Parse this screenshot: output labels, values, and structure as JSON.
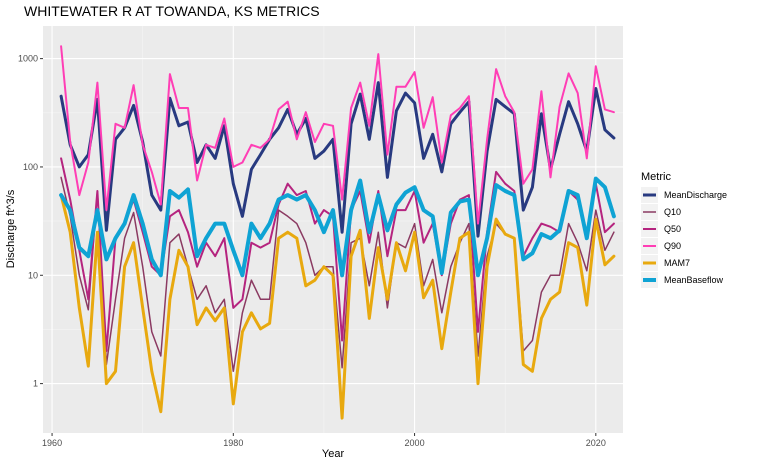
{
  "chart_data": {
    "type": "line",
    "title": "WHITEWATER R AT TOWANDA, KS  METRICS",
    "xlabel": "Year",
    "ylabel": "Discharge ft^3/s",
    "xlim": [
      1959,
      2023
    ],
    "ylim": [
      0.35,
      2000
    ],
    "yscale": "log",
    "grid": true,
    "x_ticks": [
      1960,
      1980,
      2000,
      2020
    ],
    "x_tick_labels": [
      "1960",
      "1980",
      "2000",
      "2020"
    ],
    "y_ticks": [
      1,
      10,
      100,
      1000
    ],
    "y_tick_labels": [
      "1",
      "10",
      "100",
      "1000"
    ],
    "legend": {
      "title": "Metric",
      "placement": "right"
    },
    "x": [
      1961,
      1962,
      1963,
      1964,
      1965,
      1966,
      1967,
      1968,
      1969,
      1970,
      1971,
      1972,
      1973,
      1974,
      1975,
      1976,
      1977,
      1978,
      1979,
      1980,
      1981,
      1982,
      1983,
      1984,
      1985,
      1986,
      1987,
      1988,
      1989,
      1990,
      1991,
      1992,
      1993,
      1994,
      1995,
      1996,
      1997,
      1998,
      1999,
      2000,
      2001,
      2002,
      2003,
      2004,
      2005,
      2006,
      2007,
      2008,
      2009,
      2010,
      2011,
      2012,
      2013,
      2014,
      2015,
      2016,
      2017,
      2018,
      2019,
      2020,
      2021,
      2022
    ],
    "series": [
      {
        "name": "MeanDischarge",
        "color": "#283a80",
        "width": 3,
        "values": [
          450,
          160,
          100,
          130,
          420,
          26,
          180,
          230,
          370,
          170,
          55,
          40,
          430,
          240,
          260,
          110,
          160,
          120,
          240,
          70,
          35,
          95,
          130,
          180,
          230,
          340,
          200,
          280,
          120,
          140,
          180,
          25,
          250,
          470,
          180,
          600,
          80,
          330,
          480,
          390,
          120,
          200,
          90,
          250,
          320,
          400,
          23,
          140,
          420,
          360,
          310,
          40,
          65,
          310,
          95,
          200,
          400,
          250,
          140,
          530,
          220,
          185
        ]
      },
      {
        "name": "Q10",
        "color": "#8b3a62",
        "width": 1.5,
        "values": [
          80,
          35,
          10,
          4.8,
          60,
          1.5,
          6,
          22,
          38,
          12,
          3,
          1.8,
          20,
          24,
          12,
          6,
          8,
          4.5,
          6,
          1.3,
          4.5,
          9,
          6,
          6,
          40,
          35,
          30,
          20,
          10,
          12,
          12,
          1.4,
          20,
          22,
          8,
          25,
          5,
          20,
          18,
          30,
          8,
          14,
          4.5,
          12,
          20,
          30,
          1.8,
          15,
          30,
          24,
          22,
          2,
          2.5,
          7,
          10,
          10,
          30,
          20,
          11,
          40,
          17,
          25
        ]
      },
      {
        "name": "Q50",
        "color": "#b5247f",
        "width": 2,
        "values": [
          120,
          50,
          17,
          6,
          60,
          2,
          22,
          30,
          50,
          25,
          12,
          10,
          35,
          40,
          25,
          12,
          20,
          15,
          22,
          5,
          6,
          20,
          18,
          20,
          45,
          70,
          55,
          60,
          30,
          40,
          35,
          2.5,
          40,
          60,
          20,
          60,
          15,
          40,
          40,
          60,
          20,
          30,
          10,
          30,
          50,
          55,
          3,
          25,
          90,
          70,
          60,
          15,
          22,
          30,
          28,
          25,
          60,
          50,
          22,
          70,
          25,
          30
        ]
      },
      {
        "name": "Q90",
        "color": "#ff3eb5",
        "width": 2,
        "values": [
          1300,
          170,
          55,
          110,
          600,
          40,
          250,
          230,
          570,
          160,
          90,
          45,
          720,
          350,
          350,
          75,
          160,
          150,
          280,
          100,
          110,
          160,
          150,
          180,
          340,
          400,
          180,
          320,
          170,
          250,
          240,
          50,
          350,
          600,
          240,
          1100,
          130,
          550,
          550,
          750,
          230,
          440,
          110,
          300,
          350,
          450,
          30,
          180,
          800,
          450,
          320,
          70,
          95,
          500,
          80,
          360,
          730,
          480,
          120,
          850,
          340,
          320
        ]
      },
      {
        "name": "MAM7",
        "color": "#e8a90f",
        "width": 3,
        "values": [
          55,
          25,
          5,
          1.45,
          25,
          1.0,
          1.3,
          12,
          20,
          5,
          1.3,
          0.55,
          6,
          17,
          12,
          3.5,
          5,
          3.8,
          5,
          0.65,
          3,
          4.5,
          3.2,
          3.6,
          22,
          25,
          22,
          8,
          9,
          12,
          10,
          0.48,
          15,
          26,
          4,
          18,
          6,
          20,
          11,
          25,
          6.2,
          9,
          2.1,
          7,
          22,
          25,
          1.0,
          12,
          33,
          24,
          22,
          1.5,
          1.3,
          4,
          6,
          7,
          20,
          18,
          5.3,
          33,
          12.5,
          15
        ]
      },
      {
        "name": "MeanBaseflow",
        "color": "#0fa3d4",
        "width": 4,
        "values": [
          55,
          40,
          18,
          15,
          40,
          14,
          22,
          30,
          55,
          30,
          14,
          10,
          60,
          52,
          62,
          15,
          22,
          30,
          30,
          17,
          10,
          30,
          22,
          30,
          50,
          55,
          50,
          55,
          40,
          25,
          40,
          10,
          40,
          75,
          25,
          55,
          26,
          45,
          58,
          65,
          40,
          35,
          10.5,
          38,
          48,
          50,
          10,
          22,
          68,
          60,
          55,
          14,
          16,
          24,
          22,
          26,
          60,
          55,
          22,
          78,
          65,
          35
        ]
      }
    ]
  }
}
